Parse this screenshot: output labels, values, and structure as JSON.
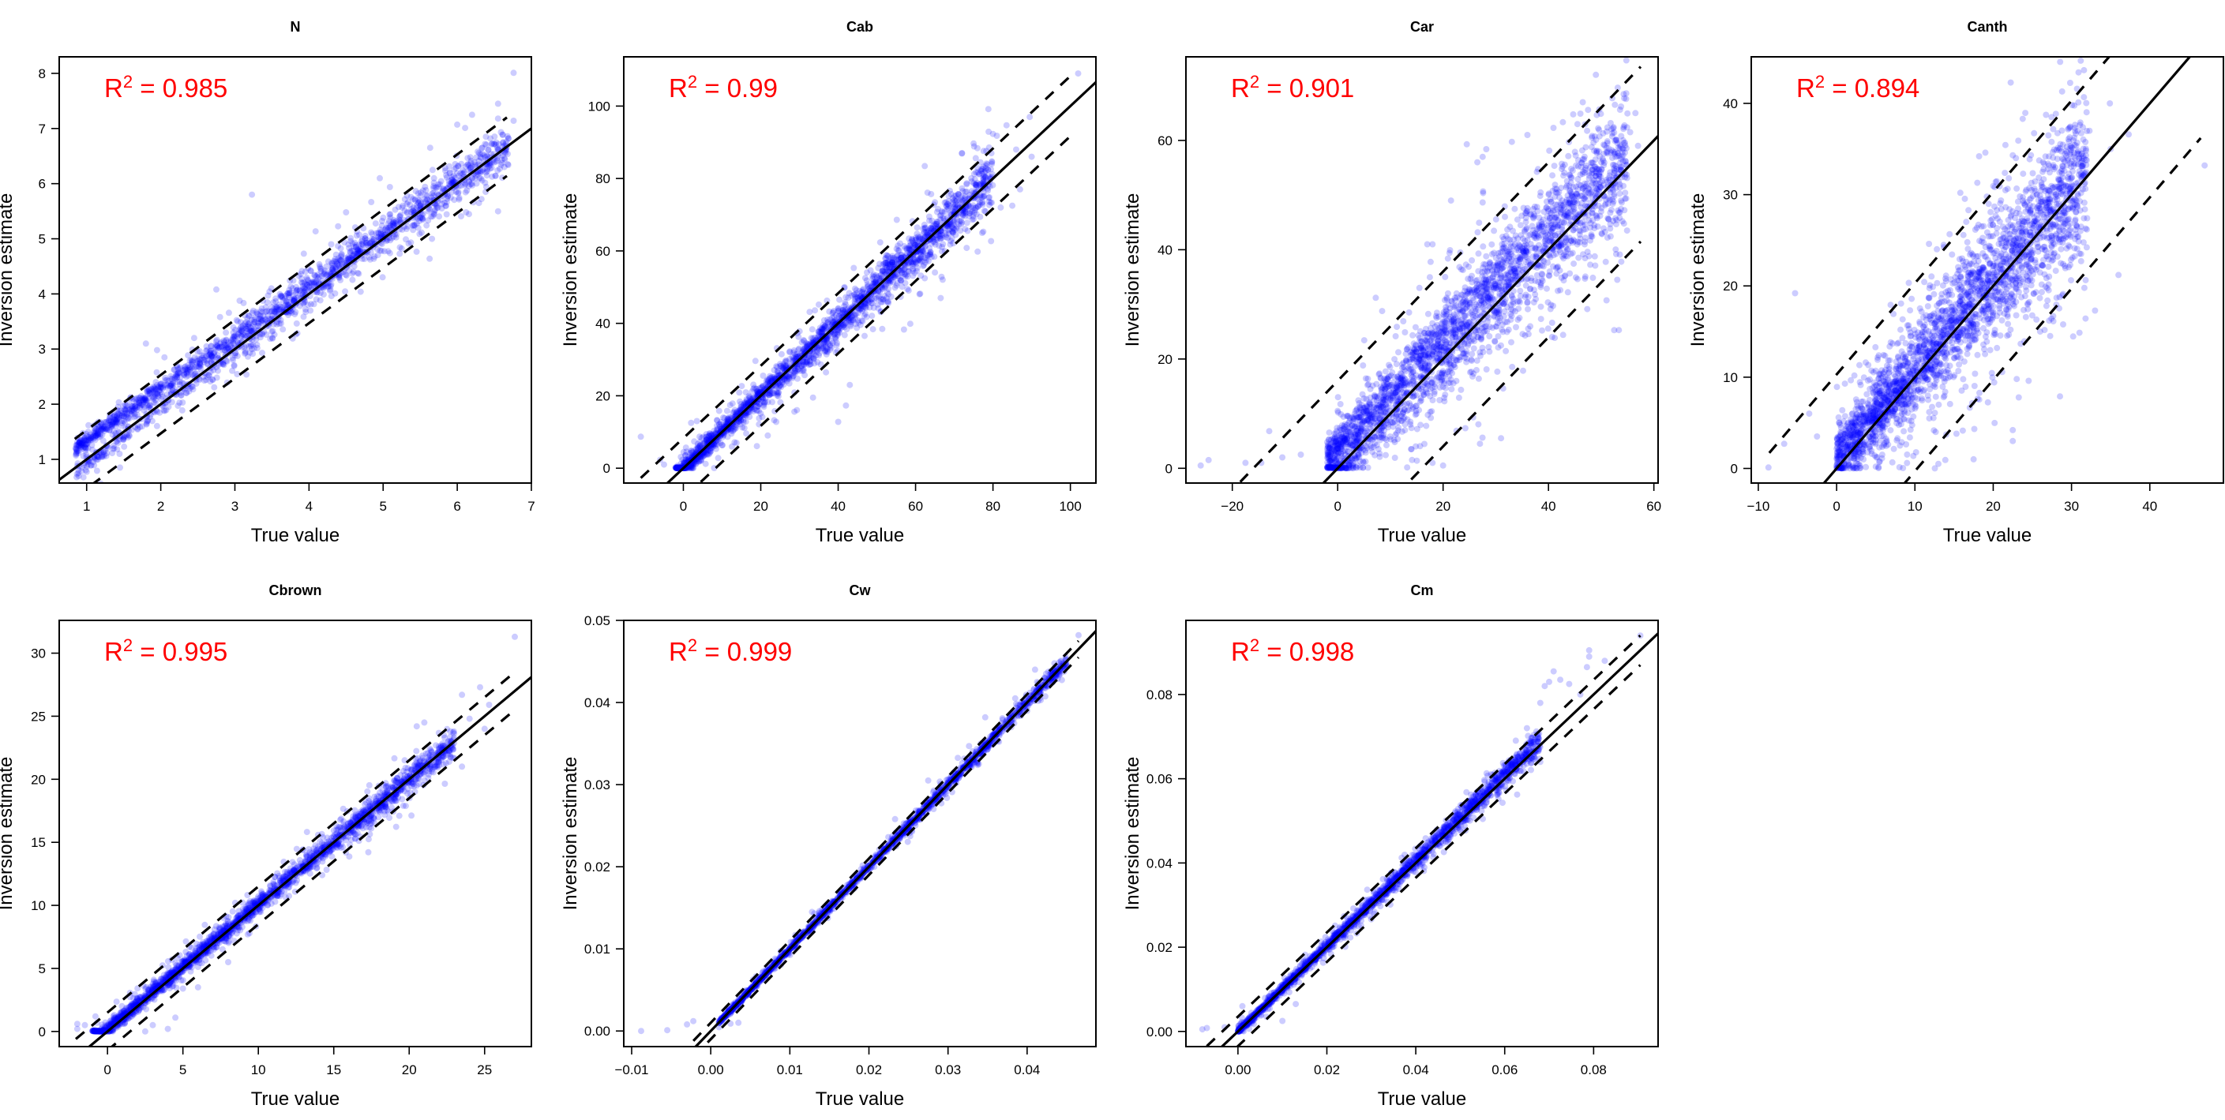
{
  "figure": {
    "xlabel": "True value",
    "ylabel": "Inversion estimate",
    "r2_prefix": "R",
    "r2_exponent": "2",
    "r2_equals": " = ",
    "point_color": "#0000ff",
    "r2_color": "#ff0000",
    "line_color": "#000000"
  },
  "chart_data": [
    {
      "type": "scatter",
      "title": "N",
      "xlabel": "True value",
      "ylabel": "Inversion estimate",
      "r2": "0.985",
      "xlim": [
        0.63,
        7.0
      ],
      "ylim": [
        0.57,
        8.3
      ],
      "xticks": [
        1,
        2,
        3,
        4,
        5,
        6,
        7
      ],
      "yticks": [
        1,
        2,
        3,
        4,
        5,
        6,
        7,
        8
      ],
      "reference_line": {
        "slope": 1,
        "intercept": 0
      },
      "band_offset": 0.53,
      "band_x_range": [
        0.84,
        6.67
      ],
      "grid": false,
      "legend": "none",
      "cloud": {
        "x_min": 0.85,
        "x_max": 6.7,
        "bias_low": 0.35,
        "bias_high": 0.0,
        "spread": 0.12,
        "wide_spread": 0.35,
        "n": 1800
      },
      "points": [
        [
          0.85,
          1.2
        ],
        [
          0.9,
          1.3
        ],
        [
          1.0,
          1.35
        ],
        [
          1.1,
          1.5
        ],
        [
          1.3,
          1.7
        ],
        [
          1.45,
          0.85
        ],
        [
          1.8,
          3.1
        ],
        [
          1.95,
          2.98
        ],
        [
          2.05,
          2.85
        ],
        [
          2.75,
          4.08
        ],
        [
          3.23,
          5.8
        ],
        [
          2.8,
          3.58
        ],
        [
          3.0,
          3.2
        ],
        [
          3.5,
          3.5
        ],
        [
          3.93,
          4.73
        ],
        [
          4.3,
          4.9
        ],
        [
          4.5,
          5.48
        ],
        [
          5.0,
          5.0
        ],
        [
          5.5,
          5.55
        ],
        [
          5.9,
          6.2
        ],
        [
          6.0,
          7.07
        ],
        [
          6.2,
          7.25
        ],
        [
          6.55,
          7.45
        ],
        [
          6.4,
          6.15
        ],
        [
          6.76,
          8.01
        ],
        [
          6.76,
          7.14
        ],
        [
          6.55,
          7.18
        ],
        [
          6.3,
          6.1
        ],
        [
          5.85,
          5.6
        ],
        [
          4.6,
          4.4
        ]
      ]
    },
    {
      "type": "scatter",
      "title": "Cab",
      "xlabel": "True value",
      "ylabel": "Inversion estimate",
      "r2": "0.99",
      "xlim": [
        -15.4,
        106.6
      ],
      "ylim": [
        -4.1,
        113.6
      ],
      "xticks": [
        0,
        20,
        40,
        60,
        80,
        100
      ],
      "yticks": [
        0,
        20,
        40,
        60,
        80,
        100
      ],
      "reference_line": {
        "slope": 1,
        "intercept": 0
      },
      "band_offset": 8.3,
      "band_x_range": [
        -11,
        100.5
      ],
      "grid": false,
      "legend": "none",
      "cloud": {
        "x_min": -2,
        "x_max": 80,
        "bias_low": 0.0,
        "bias_high": 0.0,
        "spread": 2.2,
        "wide_spread": 5.5,
        "n": 2200
      },
      "points": [
        [
          -11,
          8.7
        ],
        [
          -6,
          2.3
        ],
        [
          -5,
          1.0
        ],
        [
          0.5,
          0.5
        ],
        [
          2,
          12.5
        ],
        [
          3.5,
          13
        ],
        [
          9,
          2.8
        ],
        [
          19,
          6.1
        ],
        [
          24,
          12.8
        ],
        [
          33.5,
          19.5
        ],
        [
          40,
          12.8
        ],
        [
          42,
          17.3
        ],
        [
          43,
          23
        ],
        [
          57,
          38.3
        ],
        [
          66.5,
          47
        ],
        [
          72,
          87
        ],
        [
          75,
          89.7
        ],
        [
          79.5,
          62.7
        ],
        [
          80,
          92.3
        ],
        [
          81,
          91.8
        ],
        [
          83.5,
          94.7
        ],
        [
          86,
          88
        ],
        [
          87,
          77
        ],
        [
          89.5,
          97
        ],
        [
          90,
          86
        ],
        [
          102,
          109
        ],
        [
          85,
          72.5
        ],
        [
          82,
          72
        ],
        [
          70,
          70
        ],
        [
          60,
          60
        ]
      ]
    },
    {
      "type": "scatter",
      "title": "Car",
      "xlabel": "True value",
      "ylabel": "Inversion estimate",
      "r2": "0.901",
      "xlim": [
        -28.8,
        60.8
      ],
      "ylim": [
        -2.7,
        75.3
      ],
      "xticks": [
        -20,
        0,
        20,
        40,
        60
      ],
      "yticks": [
        0,
        20,
        40,
        60
      ],
      "reference_line": {
        "slope": 1,
        "intercept": 0
      },
      "band_offset": 16.0,
      "band_x_range": [
        -18.5,
        57.5
      ],
      "grid": false,
      "legend": "none",
      "cloud": {
        "x_min": -2,
        "x_max": 55,
        "bias_low": 4.0,
        "bias_high": 4.0,
        "spread": 3.5,
        "wide_spread": 9.0,
        "n": 2600
      },
      "points": [
        [
          -26,
          0.5
        ],
        [
          -24.5,
          1.5
        ],
        [
          -17.5,
          1
        ],
        [
          -14.5,
          1
        ],
        [
          -13,
          6.8
        ],
        [
          -10.5,
          2
        ],
        [
          -7,
          2.5
        ],
        [
          0,
          10.5
        ],
        [
          3,
          9
        ],
        [
          17,
          41
        ],
        [
          18,
          41
        ],
        [
          15.5,
          33
        ],
        [
          21.5,
          49
        ],
        [
          24.5,
          59.3
        ],
        [
          26.5,
          56
        ],
        [
          27.5,
          57
        ],
        [
          36,
          61
        ],
        [
          45.5,
          63
        ],
        [
          49,
          72
        ],
        [
          46.5,
          67
        ],
        [
          55.5,
          61.5
        ],
        [
          56.5,
          65
        ],
        [
          57,
          59
        ],
        [
          50,
          47
        ],
        [
          52.5,
          55.5
        ],
        [
          31,
          5.5
        ],
        [
          20,
          0.5
        ],
        [
          18,
          1
        ],
        [
          14,
          3.5
        ],
        [
          27,
          4.5
        ]
      ]
    },
    {
      "type": "scatter",
      "title": "Canth",
      "xlabel": "True value",
      "ylabel": "Inversion estimate",
      "r2": "0.894",
      "xlim": [
        -10.9,
        49.4
      ],
      "ylim": [
        -1.6,
        45.1
      ],
      "xticks": [
        -10,
        0,
        10,
        20,
        30,
        40
      ],
      "yticks": [
        0,
        10,
        20,
        30,
        40
      ],
      "reference_line": {
        "slope": 1,
        "intercept": 0
      },
      "band_offset": 10.3,
      "band_x_range": [
        -8.6,
        46.5
      ],
      "grid": false,
      "legend": "none",
      "cloud": {
        "x_min": 0,
        "x_max": 32,
        "bias_low": 1.5,
        "bias_high": 1.0,
        "spread": 2.8,
        "wide_spread": 6.0,
        "n": 2600
      },
      "points": [
        [
          -8.7,
          0.1
        ],
        [
          -6.7,
          2.7
        ],
        [
          -5.3,
          19.2
        ],
        [
          -3.5,
          6
        ],
        [
          -2.5,
          3.5
        ],
        [
          1,
          0.5
        ],
        [
          3,
          0.3
        ],
        [
          5,
          0.2
        ],
        [
          9,
          0.6
        ],
        [
          17.5,
          1
        ],
        [
          18.2,
          34.2
        ],
        [
          19,
          34.6
        ],
        [
          22.5,
          3
        ],
        [
          22.5,
          4.2
        ],
        [
          28.8,
          41.3
        ],
        [
          30.9,
          43.4
        ],
        [
          32.3,
          37
        ],
        [
          34.9,
          40
        ],
        [
          36,
          21.2
        ],
        [
          37.3,
          36.6
        ],
        [
          47,
          33.2
        ],
        [
          33,
          17.3
        ],
        [
          26,
          15
        ],
        [
          23,
          9.8
        ],
        [
          13,
          0.5
        ],
        [
          28,
          28
        ],
        [
          25,
          25
        ],
        [
          15,
          15
        ],
        [
          10,
          10
        ],
        [
          35,
          35
        ]
      ]
    },
    {
      "type": "scatter",
      "title": "Cbrown",
      "xlabel": "True value",
      "ylabel": "Inversion estimate",
      "r2": "0.995",
      "xlim": [
        -3.2,
        28.1
      ],
      "ylim": [
        -1.2,
        32.6
      ],
      "xticks": [
        0,
        5,
        10,
        15,
        20,
        25
      ],
      "yticks": [
        0,
        5,
        10,
        15,
        20,
        25,
        30
      ],
      "reference_line": {
        "slope": 1,
        "intercept": 0
      },
      "band_offset": 1.5,
      "band_x_range": [
        -2.1,
        26.8
      ],
      "grid": false,
      "legend": "none",
      "cloud": {
        "x_min": -1,
        "x_max": 23,
        "bias_low": 0.3,
        "bias_high": 0.0,
        "spread": 0.35,
        "wide_spread": 0.9,
        "n": 2200
      },
      "points": [
        [
          -2,
          0.6
        ],
        [
          -2,
          0.2
        ],
        [
          -1.5,
          0.5
        ],
        [
          -0.8,
          1.2
        ],
        [
          0.5,
          0.8
        ],
        [
          2.5,
          0
        ],
        [
          3,
          0.5
        ],
        [
          4,
          0.2
        ],
        [
          4.5,
          1.1
        ],
        [
          5,
          3.4
        ],
        [
          6,
          3.5
        ],
        [
          8,
          5.5
        ],
        [
          9.3,
          7.7
        ],
        [
          15.8,
          14.2
        ],
        [
          19.7,
          21.5
        ],
        [
          20.5,
          24.2
        ],
        [
          21,
          24.5
        ],
        [
          22.3,
          23.5
        ],
        [
          23.5,
          26.7
        ],
        [
          24,
          24.8
        ],
        [
          24.7,
          27.3
        ],
        [
          25.3,
          25.9
        ],
        [
          27,
          31.3
        ],
        [
          23.5,
          21
        ],
        [
          25,
          24
        ],
        [
          20.5,
          19.5
        ],
        [
          18,
          18
        ],
        [
          12,
          12
        ],
        [
          14,
          14.5
        ],
        [
          16,
          16
        ]
      ]
    },
    {
      "type": "scatter",
      "title": "Cw",
      "xlabel": "True value",
      "ylabel": "Inversion estimate",
      "r2": "0.999",
      "xlim": [
        -0.011,
        0.0487
      ],
      "ylim": [
        -0.0019,
        0.05
      ],
      "xticks": [
        -0.01,
        0.0,
        0.01,
        0.02,
        0.03,
        0.04
      ],
      "yticks": [
        0.0,
        0.01,
        0.02,
        0.03,
        0.04,
        0.05
      ],
      "xtick_labels": [
        "−0.01",
        "0.00",
        "0.01",
        "0.02",
        "0.03",
        "0.04"
      ],
      "ytick_labels": [
        "0.00",
        "0.01",
        "0.02",
        "0.03",
        "0.04",
        "0.05"
      ],
      "reference_line": {
        "slope": 1,
        "intercept": 0
      },
      "band_offset": 0.001,
      "band_x_range": [
        -0.0022,
        0.0465
      ],
      "grid": false,
      "legend": "none",
      "cloud": {
        "x_min": 0.001,
        "x_max": 0.045,
        "bias_low": 0.0,
        "bias_high": 0.0,
        "spread": 0.00025,
        "wide_spread": 0.0006,
        "n": 1800
      },
      "points": [
        [
          -0.0088,
          0.0
        ],
        [
          -0.0055,
          0.0001
        ],
        [
          -0.003,
          0.0008
        ],
        [
          -0.0022,
          0.0012
        ],
        [
          0.0025,
          0.0009
        ],
        [
          0.0035,
          0.001
        ],
        [
          0.0128,
          0.0145
        ],
        [
          0.0233,
          0.0258
        ],
        [
          0.0275,
          0.0305
        ],
        [
          0.0347,
          0.0382
        ],
        [
          0.0385,
          0.0405
        ],
        [
          0.041,
          0.044
        ],
        [
          0.0465,
          0.0482
        ],
        [
          0.043,
          0.0435
        ],
        [
          0.038,
          0.037
        ],
        [
          0.02,
          0.02
        ],
        [
          0.03,
          0.03
        ],
        [
          0.01,
          0.01
        ],
        [
          0.035,
          0.035
        ],
        [
          0.015,
          0.015
        ]
      ]
    },
    {
      "type": "scatter",
      "title": "Cm",
      "xlabel": "True value",
      "ylabel": "Inversion estimate",
      "r2": "0.998",
      "xlim": [
        -0.0117,
        0.0945
      ],
      "ylim": [
        -0.0036,
        0.0976
      ],
      "xticks": [
        0.0,
        0.02,
        0.04,
        0.06,
        0.08
      ],
      "yticks": [
        0.0,
        0.02,
        0.04,
        0.06,
        0.08
      ],
      "xtick_labels": [
        "0.00",
        "0.02",
        "0.04",
        "0.06",
        "0.08"
      ],
      "ytick_labels": [
        "0.00",
        "0.02",
        "0.04",
        "0.06",
        "0.08"
      ],
      "reference_line": {
        "slope": 1,
        "intercept": 0
      },
      "band_offset": 0.0035,
      "band_x_range": [
        -0.007,
        0.0905
      ],
      "grid": false,
      "legend": "none",
      "cloud": {
        "x_min": 0.0,
        "x_max": 0.068,
        "bias_low": 0.0,
        "bias_high": 0.0015,
        "spread": 0.0007,
        "wide_spread": 0.0018,
        "n": 2000
      },
      "points": [
        [
          -0.008,
          0.0005
        ],
        [
          -0.007,
          0.0008
        ],
        [
          -0.003,
          0.001
        ],
        [
          0.001,
          0.006
        ],
        [
          0.01,
          0.0025
        ],
        [
          0.013,
          0.0065
        ],
        [
          0.065,
          0.072
        ],
        [
          0.068,
          0.078
        ],
        [
          0.069,
          0.082
        ],
        [
          0.07,
          0.083
        ],
        [
          0.071,
          0.0855
        ],
        [
          0.0725,
          0.0835
        ],
        [
          0.0745,
          0.0825
        ],
        [
          0.079,
          0.0905
        ],
        [
          0.079,
          0.089
        ],
        [
          0.0785,
          0.0865
        ],
        [
          0.0825,
          0.088
        ],
        [
          0.0905,
          0.094
        ],
        [
          0.077,
          0.08
        ],
        [
          0.068,
          0.064
        ]
      ]
    }
  ]
}
